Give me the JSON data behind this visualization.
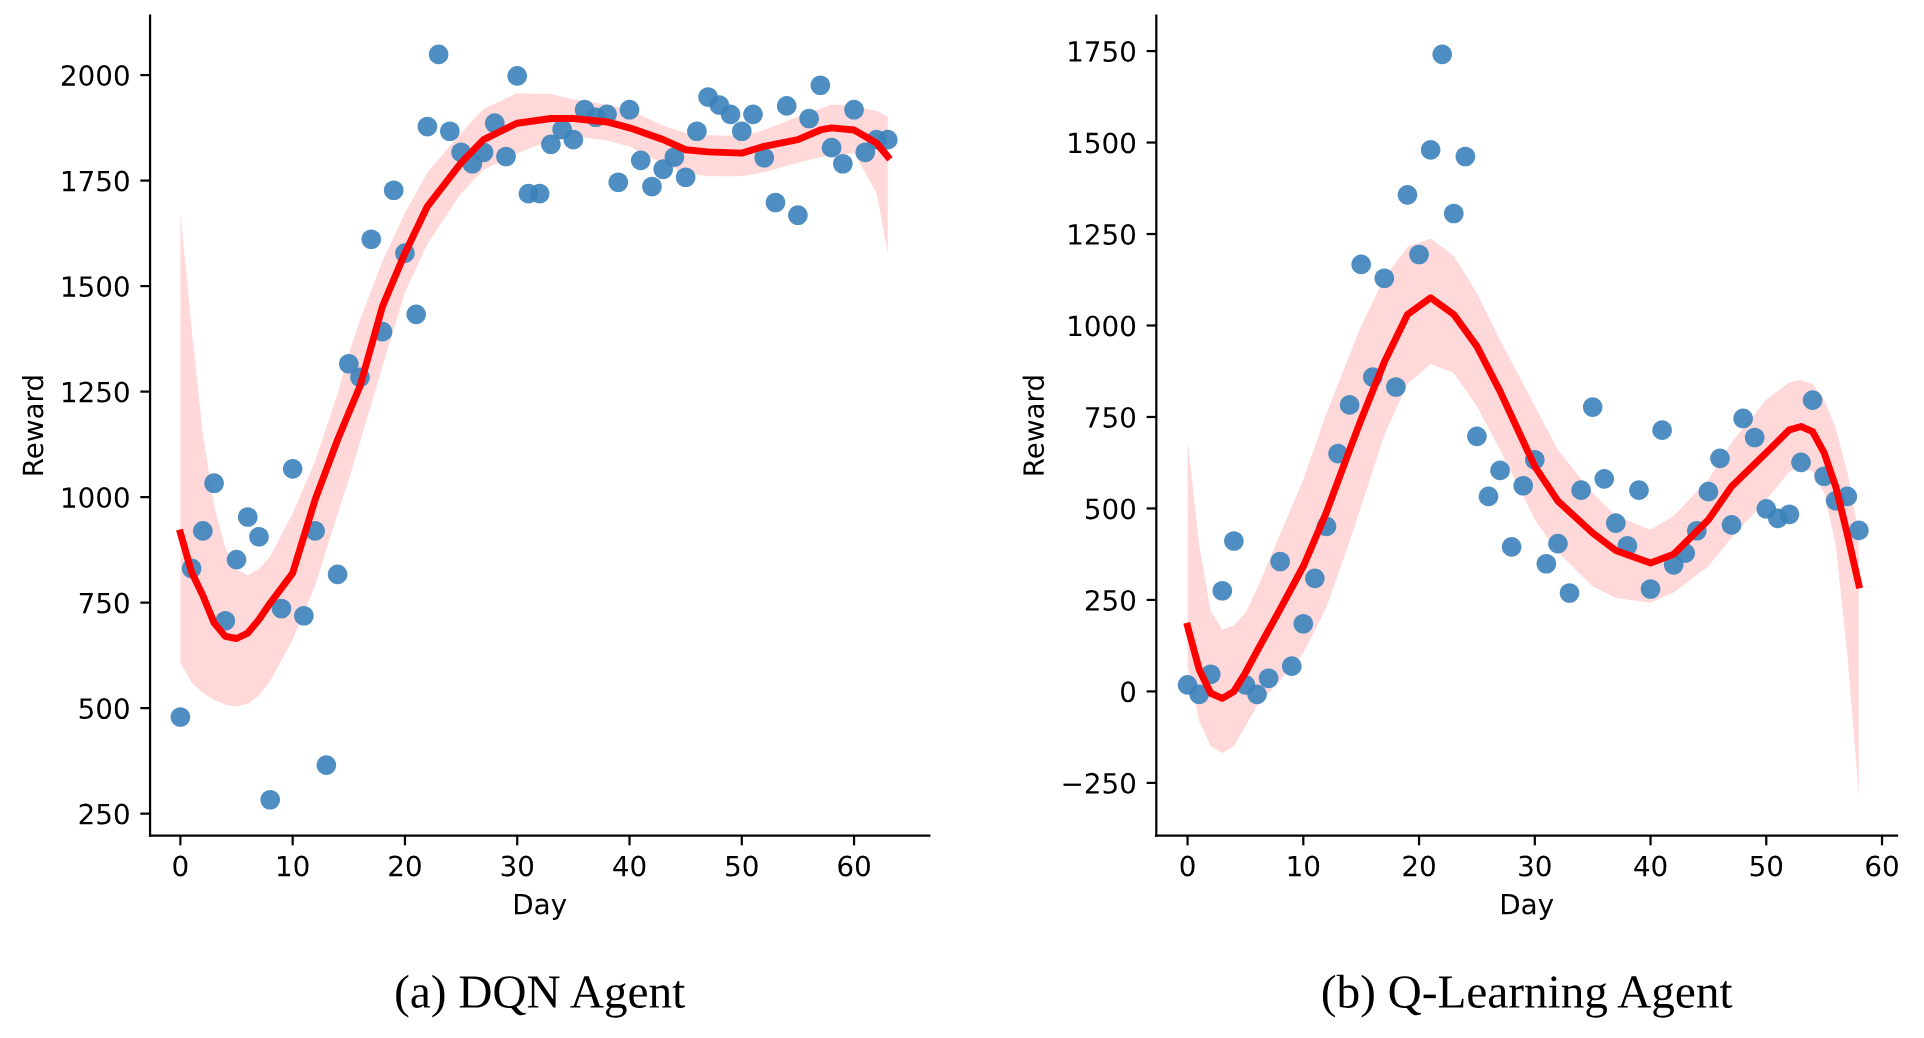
{
  "chart_data": [
    {
      "type": "scatter",
      "title": "(a) DQN Agent",
      "xlabel": "Day",
      "ylabel": "Reward",
      "xlim": [
        -2.7,
        66.7
      ],
      "ylim": [
        198,
        2141
      ],
      "xticks": [
        0,
        10,
        20,
        30,
        40,
        50,
        60
      ],
      "yticks": [
        250,
        500,
        750,
        1000,
        1250,
        1500,
        1750,
        2000
      ],
      "grid": false,
      "legend": false,
      "series": [
        {
          "marker": "circle",
          "color": "#3b82bb",
          "x": [
            0,
            1,
            2,
            3,
            4,
            5,
            6,
            7,
            8,
            9,
            10,
            11,
            12,
            13,
            14,
            15,
            16,
            17,
            18,
            19,
            20,
            21,
            22,
            23,
            24,
            25,
            26,
            27,
            28,
            29,
            30,
            31,
            32,
            33,
            34,
            35,
            36,
            37,
            38,
            39,
            40,
            41,
            42,
            43,
            44,
            45,
            46,
            47,
            48,
            49,
            50,
            51,
            52,
            53,
            54,
            55,
            56,
            57,
            58,
            59,
            60,
            61,
            62,
            63
          ],
          "values": [
            479,
            831,
            920,
            1033,
            707,
            852,
            953,
            906,
            283,
            736,
            1067,
            719,
            920,
            365,
            817,
            1316,
            1284,
            1611,
            1392,
            1727,
            1578,
            1433,
            1878,
            2049,
            1867,
            1817,
            1790,
            1817,
            1886,
            1807,
            1998,
            1719,
            1719,
            1836,
            1871,
            1847,
            1918,
            1900,
            1907,
            1746,
            1918,
            1798,
            1736,
            1777,
            1806,
            1758,
            1867,
            1948,
            1929,
            1907,
            1867,
            1907,
            1804,
            1698,
            1927,
            1668,
            1897,
            1976,
            1828,
            1790,
            1918,
            1817,
            1847,
            1847
          ]
        },
        {
          "type": "line",
          "marker": "none",
          "color": "#ff0000",
          "line_style": "solid",
          "x": [
            0,
            1,
            2,
            3,
            4,
            5,
            6,
            7,
            8,
            10,
            12,
            14,
            15,
            16,
            18,
            20,
            22,
            25,
            27,
            30,
            33,
            35,
            38,
            40,
            43,
            45,
            47,
            50,
            52,
            55,
            57,
            58,
            60,
            62,
            63
          ],
          "values": [
            915,
            822,
            767,
            702,
            670,
            665,
            678,
            710,
            749,
            820,
            994,
            1136,
            1200,
            1263,
            1452,
            1578,
            1689,
            1792,
            1847,
            1886,
            1897,
            1897,
            1889,
            1875,
            1847,
            1823,
            1818,
            1815,
            1831,
            1847,
            1870,
            1875,
            1870,
            1839,
            1807
          ],
          "lower": [
            607,
            560,
            536,
            520,
            508,
            504,
            510,
            530,
            565,
            662,
            790,
            960,
            1041,
            1130,
            1310,
            1484,
            1600,
            1720,
            1775,
            1815,
            1845,
            1855,
            1845,
            1831,
            1790,
            1768,
            1760,
            1760,
            1770,
            1792,
            1805,
            1810,
            1815,
            1720,
            1578
          ],
          "upper": [
            1673,
            1400,
            1152,
            980,
            880,
            828,
            815,
            830,
            860,
            962,
            1085,
            1245,
            1341,
            1420,
            1560,
            1673,
            1770,
            1863,
            1920,
            1957,
            1955,
            1942,
            1930,
            1918,
            1880,
            1863,
            1858,
            1855,
            1870,
            1902,
            1920,
            1930,
            1926,
            1915,
            1902
          ]
        }
      ]
    },
    {
      "type": "scatter",
      "title": "(b) Q-Learning Agent",
      "xlabel": "Day",
      "ylabel": "Reward",
      "xlim": [
        -2.7,
        61.3
      ],
      "ylim": [
        -394,
        1847
      ],
      "xticks": [
        0,
        10,
        20,
        30,
        40,
        50,
        60
      ],
      "yticks": [
        {
          "value": -250,
          "label": "−250"
        },
        0,
        250,
        500,
        750,
        1000,
        1250,
        1500,
        1750
      ],
      "grid": false,
      "legend": false,
      "series": [
        {
          "marker": "circle",
          "color": "#3b82bb",
          "x": [
            0,
            1,
            2,
            3,
            4,
            5,
            6,
            7,
            8,
            9,
            10,
            11,
            12,
            13,
            14,
            15,
            16,
            17,
            18,
            19,
            20,
            21,
            22,
            23,
            24,
            25,
            26,
            27,
            28,
            29,
            30,
            31,
            32,
            33,
            34,
            35,
            36,
            37,
            38,
            39,
            40,
            41,
            42,
            43,
            44,
            45,
            46,
            47,
            48,
            49,
            50,
            51,
            52,
            53,
            54,
            55,
            56,
            57,
            58
          ],
          "values": [
            18,
            -8,
            47,
            275,
            411,
            18,
            -8,
            36,
            355,
            69,
            185,
            309,
            451,
            650,
            783,
            1167,
            859,
            1129,
            832,
            1357,
            1194,
            1480,
            1741,
            1306,
            1462,
            697,
            533,
            604,
            395,
            562,
            633,
            349,
            404,
            269,
            550,
            777,
            581,
            460,
            398,
            550,
            280,
            714,
            346,
            378,
            439,
            546,
            637,
            455,
            746,
            694,
            499,
            473,
            484,
            626,
            796,
            588,
            521,
            533,
            440
          ]
        },
        {
          "type": "line",
          "marker": "none",
          "color": "#ff0000",
          "line_style": "solid",
          "x": [
            0,
            1,
            2,
            3,
            4,
            5,
            6,
            8,
            10,
            12,
            14,
            15,
            17,
            19,
            21,
            23,
            25,
            27,
            30,
            32,
            35,
            37,
            40,
            42,
            45,
            47,
            50,
            52,
            53,
            54,
            55,
            56,
            57,
            58
          ],
          "values": [
            178,
            60,
            -5,
            -19,
            0,
            51,
            110,
            225,
            342,
            490,
            660,
            743,
            900,
            1030,
            1076,
            1030,
            943,
            820,
            615,
            520,
            433,
            385,
            351,
            375,
            469,
            560,
            652,
            715,
            724,
            710,
            652,
            560,
            430,
            291
          ],
          "lower": [
            69,
            -80,
            -150,
            -168,
            -150,
            -95,
            -40,
            30,
            105,
            230,
            410,
            506,
            700,
            840,
            895,
            870,
            779,
            660,
            469,
            380,
            287,
            255,
            242,
            270,
            342,
            420,
            524,
            600,
            615,
            600,
            542,
            400,
            100,
            -286
          ],
          "upper": [
            688,
            400,
            220,
            169,
            180,
            214,
            280,
            430,
            579,
            760,
            920,
            999,
            1130,
            1215,
            1238,
            1190,
            1089,
            960,
            780,
            660,
            542,
            480,
            442,
            480,
            579,
            680,
            797,
            845,
            852,
            840,
            797,
            720,
            600,
            433
          ]
        }
      ]
    }
  ]
}
